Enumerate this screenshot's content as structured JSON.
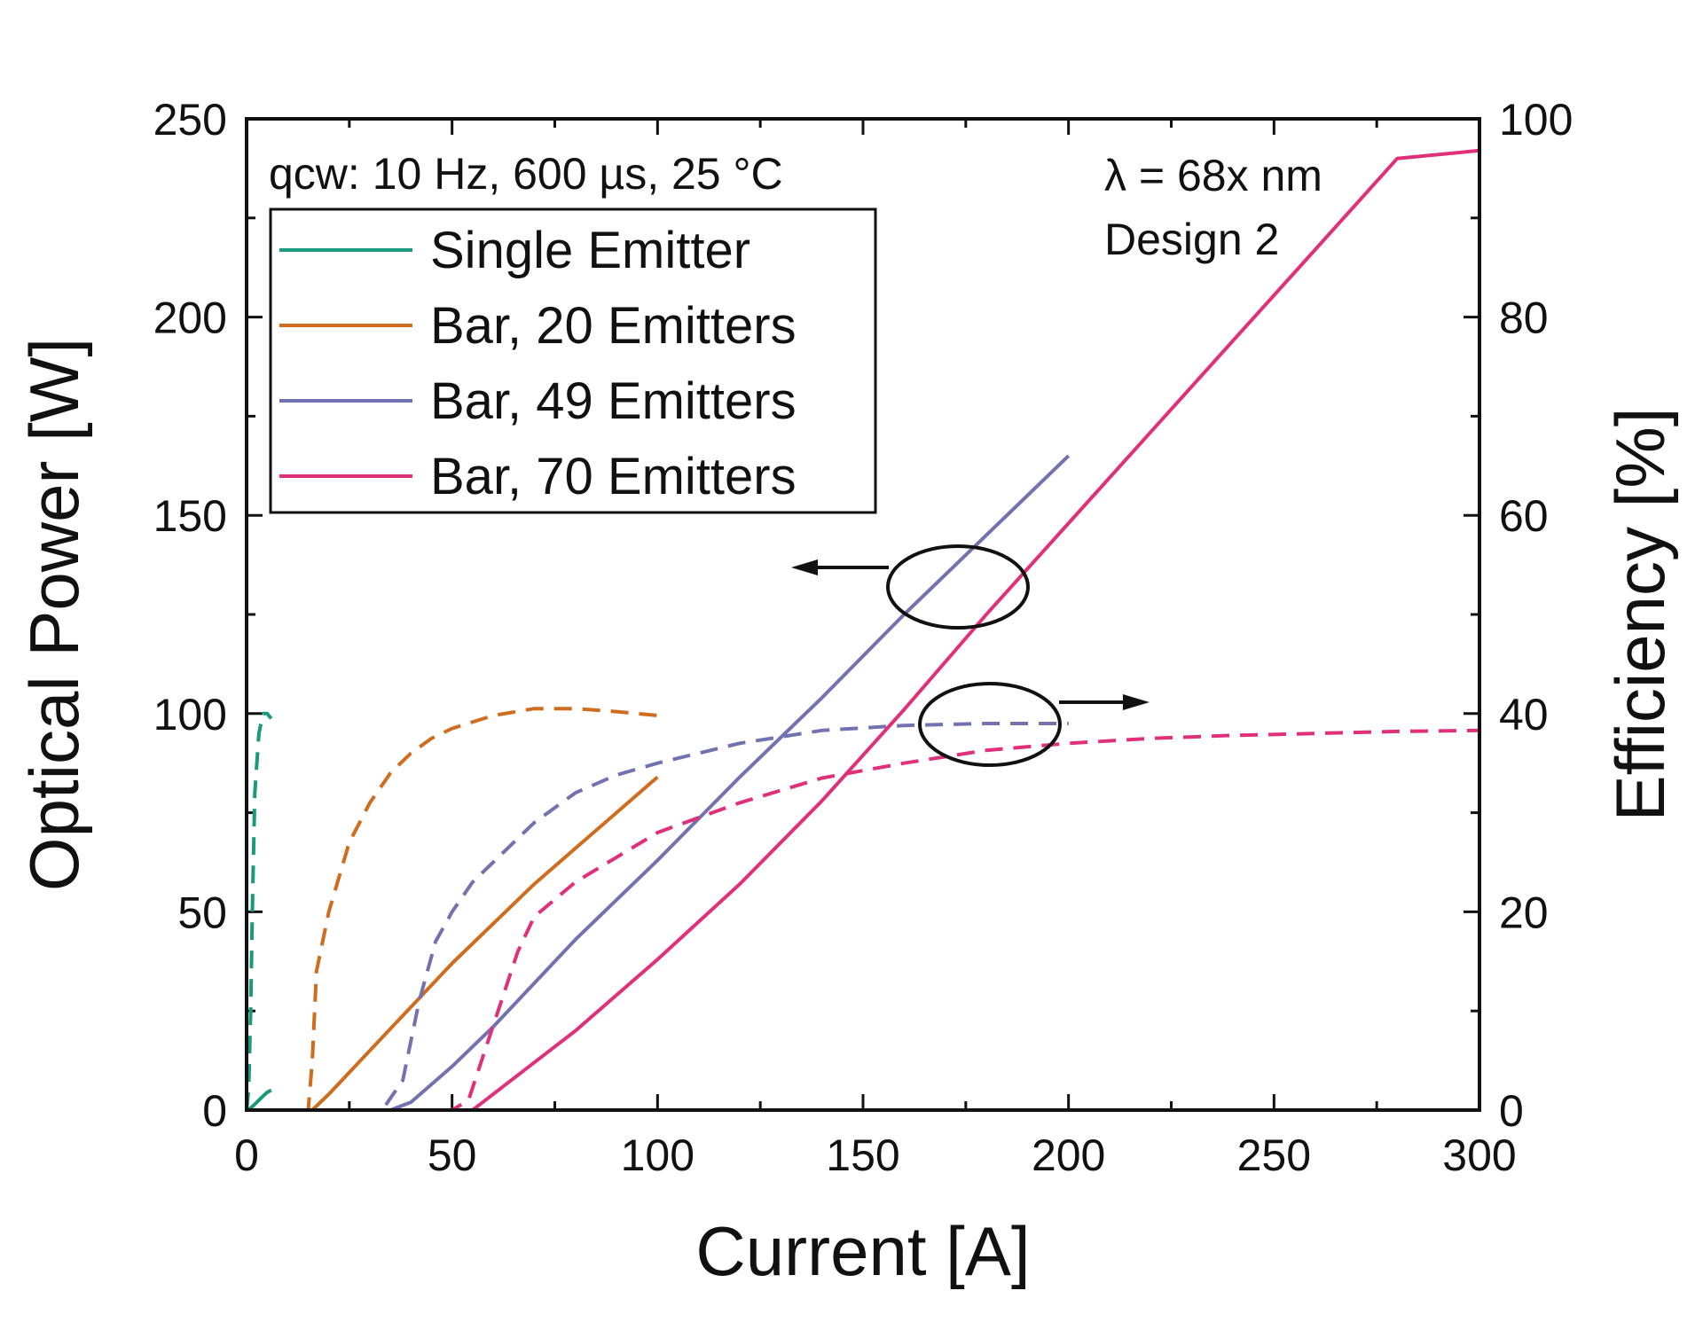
{
  "chart_data": {
    "type": "line",
    "xlabel": "Current [A]",
    "ylabel_left": "Optical Power [W]",
    "ylabel_right": "Efficiency [%]",
    "xlim": [
      0,
      300
    ],
    "ylim_left": [
      0,
      250
    ],
    "ylim_right": [
      0,
      100
    ],
    "x_ticks": [
      "0",
      "50",
      "100",
      "150",
      "200",
      "250",
      "300"
    ],
    "y_left_ticks": [
      "0",
      "50",
      "100",
      "150",
      "200",
      "250"
    ],
    "y_right_ticks": [
      "0",
      "20",
      "40",
      "60",
      "80",
      "100"
    ],
    "grid": false,
    "legend_position": "top-left",
    "annotations": {
      "conditions": "qcw: 10 Hz, 600 µs, 25 °C",
      "wavelength": "λ = 68x nm",
      "design": "Design 2"
    },
    "series": [
      {
        "name": "Single Emitter",
        "color": "#1a9a7a",
        "power": {
          "axis": "left",
          "x": [
            0,
            1,
            2,
            3,
            4,
            5,
            6
          ],
          "y": [
            0,
            0.5,
            1.5,
            2.5,
            3.5,
            4.5,
            5
          ]
        },
        "efficiency": {
          "axis": "right",
          "x": [
            0,
            0.5,
            1,
            1.5,
            2,
            3,
            4,
            5,
            6
          ],
          "y": [
            0,
            2,
            10,
            22,
            32,
            38,
            40,
            40,
            39.5
          ]
        }
      },
      {
        "name": "Bar, 20 Emitters",
        "color": "#d06c1e",
        "power": {
          "axis": "left",
          "x": [
            0,
            10,
            16,
            20,
            30,
            40,
            50,
            60,
            70,
            80,
            90,
            100
          ],
          "y": [
            0,
            0,
            0,
            4,
            15,
            26,
            37,
            47,
            57,
            66,
            75,
            84
          ]
        },
        "efficiency": {
          "axis": "right",
          "x": [
            0,
            10,
            15,
            16,
            17,
            20,
            25,
            30,
            35,
            40,
            45,
            50,
            60,
            70,
            80,
            90,
            100
          ],
          "y": [
            0,
            0,
            0,
            5,
            14,
            20,
            27,
            31,
            34,
            36,
            37.5,
            38.5,
            39.8,
            40.5,
            40.5,
            40.2,
            39.8
          ]
        }
      },
      {
        "name": "Bar, 49 Emitters",
        "color": "#7372b0",
        "power": {
          "axis": "left",
          "x": [
            0,
            35,
            40,
            50,
            60,
            80,
            100,
            120,
            140,
            160,
            180,
            200
          ],
          "y": [
            0,
            0,
            2,
            11,
            21,
            43,
            63,
            84,
            104,
            125,
            145,
            165
          ]
        },
        "efficiency": {
          "axis": "right",
          "x": [
            0,
            33,
            38,
            42,
            46,
            50,
            55,
            60,
            70,
            80,
            90,
            100,
            110,
            120,
            140,
            160,
            180,
            200
          ],
          "y": [
            0,
            0,
            3,
            11,
            17,
            20,
            23,
            25,
            29,
            32,
            33.8,
            35,
            36,
            37,
            38.3,
            38.8,
            39,
            39
          ]
        }
      },
      {
        "name": "Bar, 70 Emitters",
        "color": "#e0307a",
        "power": {
          "axis": "left",
          "x": [
            0,
            55,
            60,
            80,
            100,
            120,
            140,
            160,
            180,
            200,
            220,
            240,
            260,
            280,
            300
          ],
          "y": [
            0,
            0,
            4,
            20,
            38,
            57,
            78,
            101,
            125,
            148,
            171,
            194,
            217,
            240,
            242
          ]
        },
        "efficiency": {
          "axis": "right",
          "x": [
            0,
            50,
            54,
            58,
            62,
            66,
            70,
            80,
            90,
            100,
            120,
            140,
            160,
            180,
            200,
            220,
            240,
            260,
            280,
            300
          ],
          "y": [
            0,
            0,
            1,
            6,
            11,
            16,
            19.5,
            23,
            25.5,
            28,
            31,
            33.5,
            35,
            36.3,
            37,
            37.5,
            37.8,
            38,
            38.2,
            38.3
          ]
        }
      }
    ]
  }
}
